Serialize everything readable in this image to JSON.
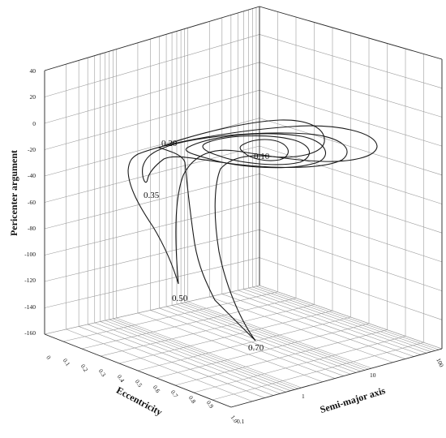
{
  "chart_data": {
    "type": "3d-contour",
    "xlabel": "Eccentricity",
    "ylabel": "Semi-major axis",
    "zlabel": "Pericenter argument",
    "x_ticks": [
      "0",
      "0.1",
      "0.2",
      "0.3",
      "0.4",
      "0.5",
      "0.6",
      "0.7",
      "0.8",
      "0.9",
      "1.0"
    ],
    "y_ticks": [
      "0.1",
      "1",
      "10",
      "100"
    ],
    "z_ticks": [
      "40",
      "20",
      "0",
      "-20",
      "-40",
      "-60",
      "-80",
      "-100",
      "-120",
      "-140",
      "-160"
    ],
    "xlim": [
      0,
      1
    ],
    "ylim": [
      0.1,
      100
    ],
    "y_scale": "log",
    "zlim": [
      -160,
      40
    ],
    "grid": true,
    "contour_labels": [
      {
        "text": "0.10"
      },
      {
        "text": "0.20"
      },
      {
        "text": "0.35"
      },
      {
        "text": "0.50"
      },
      {
        "text": "0.70"
      }
    ]
  }
}
